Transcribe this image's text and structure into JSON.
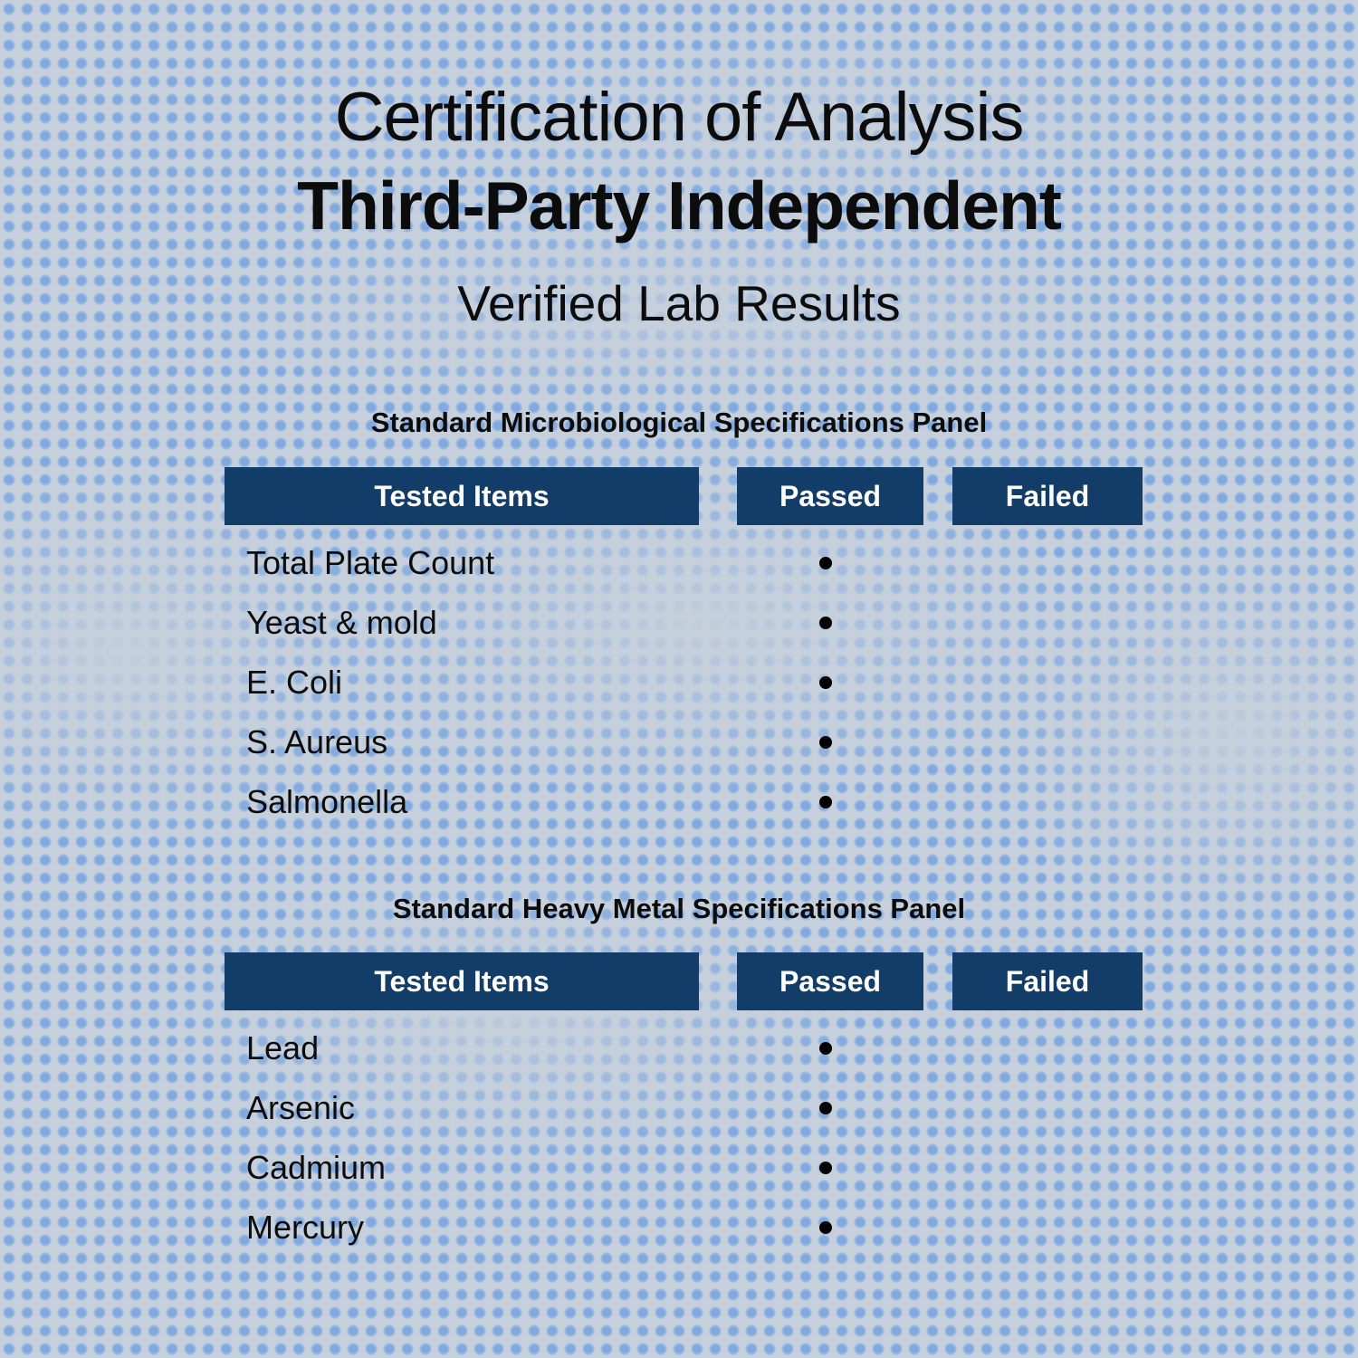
{
  "header": {
    "title": "Certification of Analysis",
    "emphasis": "Third-Party Independent",
    "subtitle": "Verified Lab Results"
  },
  "colors": {
    "background_base": "#c6d0dc",
    "halftone_dot_blue": "#7da7e0",
    "header_navy": "#123d68",
    "header_text": "#ffffff",
    "body_text": "#0c0c0c",
    "pass_dot": "#000000"
  },
  "tables": [
    {
      "section_title": "Standard Microbiological Specifications Panel",
      "columns": [
        "Tested Items",
        "Passed",
        "Failed"
      ],
      "rows": [
        {
          "item": "Total Plate Count",
          "passed": true,
          "failed": false
        },
        {
          "item": "Yeast & mold",
          "passed": true,
          "failed": false
        },
        {
          "item": "E. Coli",
          "passed": true,
          "failed": false
        },
        {
          "item": "S. Aureus",
          "passed": true,
          "failed": false
        },
        {
          "item": "Salmonella",
          "passed": true,
          "failed": false
        }
      ]
    },
    {
      "section_title": "Standard Heavy Metal Specifications Panel",
      "columns": [
        "Tested Items",
        "Passed",
        "Failed"
      ],
      "rows": [
        {
          "item": "Lead",
          "passed": true,
          "failed": false
        },
        {
          "item": "Arsenic",
          "passed": true,
          "failed": false
        },
        {
          "item": "Cadmium",
          "passed": true,
          "failed": false
        },
        {
          "item": "Mercury",
          "passed": true,
          "failed": false
        }
      ]
    }
  ]
}
